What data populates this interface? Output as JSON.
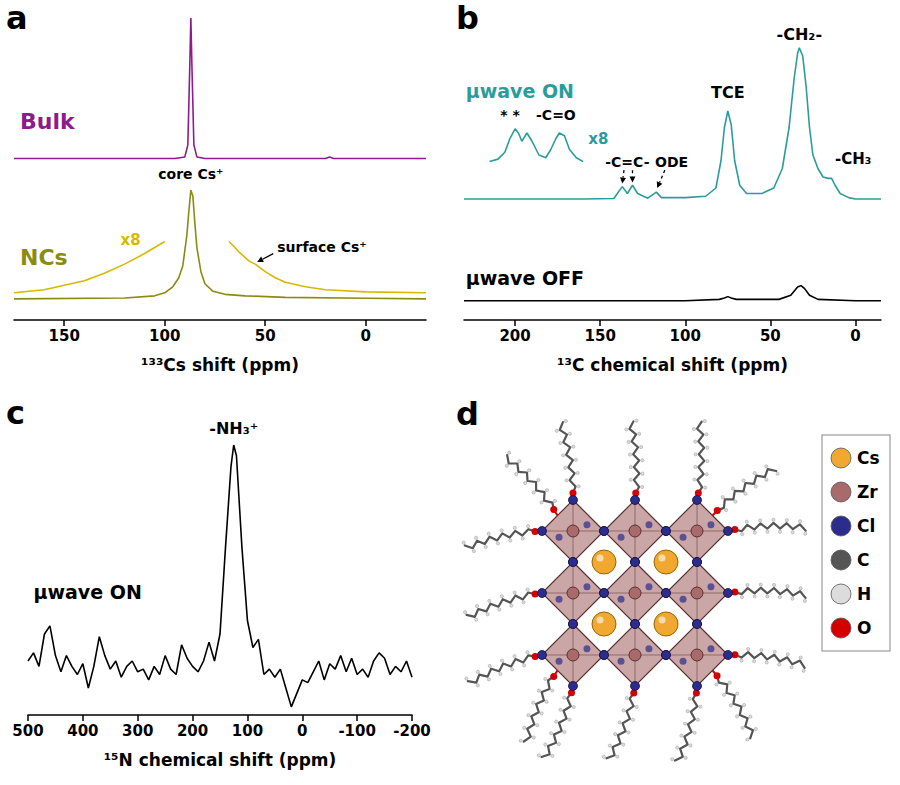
{
  "chart_data": [
    {
      "panel_label": "a",
      "type": "line",
      "x_label": "¹³³Cs shift (ppm)",
      "xlim": [
        175,
        -30
      ],
      "xticks": [
        150,
        100,
        50,
        0
      ],
      "ylim": [
        0,
        100
      ],
      "tick_labels": "x",
      "grid": false,
      "series": [
        {
          "name": "Bulk",
          "color": "#8e1b8c",
          "x": [
            175,
            95,
            90,
            88.5,
            87.5,
            87,
            86.5,
            85.5,
            84,
            80,
            20,
            18,
            16,
            -30
          ],
          "values": [
            53.5,
            53.5,
            54,
            58,
            85,
            100,
            85,
            58,
            54,
            53.5,
            53.5,
            54,
            53.5,
            53.5
          ]
        },
        {
          "name": "NCs",
          "color": "#8b8b12",
          "x": [
            175,
            120,
            105,
            100,
            96,
            93,
            91,
            89,
            88,
            87,
            86,
            85,
            84,
            82,
            80,
            76,
            70,
            60,
            40,
            0,
            -30
          ],
          "values": [
            7,
            7.3,
            8,
            9,
            11,
            14,
            18,
            28,
            36,
            43,
            41,
            32,
            24,
            16,
            12,
            9.5,
            8.5,
            8,
            7.5,
            7.2,
            7
          ]
        },
        {
          "name": "x8",
          "color": "#d8b800",
          "x": [
            175,
            160,
            150,
            140,
            130,
            120,
            110,
            100,
            84,
            68,
            63,
            58,
            55,
            50,
            45,
            40,
            30,
            20,
            0,
            -30
          ],
          "values": [
            9,
            10,
            11.5,
            13,
            15.5,
            18.5,
            22,
            26,
            null,
            26,
            22.5,
            19.5,
            18.5,
            16,
            14,
            12.5,
            11,
            10,
            9.3,
            9
          ]
        }
      ],
      "annotations": [
        "core Cs⁺",
        "surface Cs⁺"
      ]
    },
    {
      "panel_label": "b",
      "type": "line",
      "x_label": "¹³C chemical shift (ppm)",
      "xlim": [
        230,
        -15
      ],
      "xticks": [
        200,
        150,
        100,
        50,
        0
      ],
      "ylim": [
        0,
        100
      ],
      "tick_labels": "x",
      "grid": false,
      "series": [
        {
          "name": "µwave ON",
          "color": "#2a9d9a",
          "x": [
            230,
            160,
            142,
            137,
            134,
            131,
            128,
            122,
            117,
            114,
            100,
            88,
            82,
            79,
            77,
            75,
            73,
            71,
            68,
            64,
            55,
            48,
            43,
            39,
            36,
            34,
            33,
            31,
            29,
            27,
            25,
            22,
            19,
            16,
            14,
            12,
            9,
            4,
            0,
            -15
          ],
          "values": [
            44,
            44,
            44.2,
            48.5,
            46,
            49,
            46,
            44.3,
            46.5,
            44.5,
            44.5,
            45,
            48,
            58,
            70,
            76,
            71,
            58,
            49,
            46,
            46,
            48,
            55,
            70,
            88,
            97,
            99,
            96,
            85,
            70,
            60,
            55,
            52,
            51.5,
            51.5,
            49,
            46,
            44.5,
            44,
            44
          ]
        },
        {
          "name": "µwave OFF",
          "color": "#000000",
          "x": [
            230,
            100,
            80,
            77,
            75,
            73,
            70,
            45,
            38,
            34,
            32,
            30,
            27,
            22,
            0,
            -15
          ],
          "values": [
            7,
            7,
            7.5,
            8,
            8.5,
            8,
            7.5,
            7.5,
            9,
            12,
            12.5,
            11.5,
            9,
            7.5,
            7,
            7
          ]
        },
        {
          "name": "x8",
          "color": "#2a9d9a",
          "x": [
            215,
            210,
            206,
            203,
            200,
            198,
            196,
            193,
            190,
            186,
            182,
            179,
            176,
            174,
            171,
            168,
            164,
            160
          ],
          "values": [
            57.6,
            58.5,
            61,
            66,
            69.5,
            68,
            65,
            68,
            65,
            60,
            59,
            62,
            66,
            68,
            67,
            62,
            59,
            57.6
          ]
        }
      ],
      "annotations": [
        "* *",
        "-C=O",
        "-C=C-",
        "ODE",
        "TCE",
        "-CH₂-",
        "-CH₃"
      ]
    },
    {
      "panel_label": "c",
      "type": "line",
      "x_label": "¹⁵N chemical shift (ppm)",
      "xlim": [
        500,
        -200
      ],
      "xticks": [
        500,
        400,
        300,
        200,
        100,
        0,
        -100,
        -200
      ],
      "ylim": [
        0,
        100
      ],
      "tick_labels": "x",
      "grid": false,
      "series": [
        {
          "name": "µwave ON",
          "color": "#000000",
          "x": [
            500,
            490,
            480,
            470,
            460,
            450,
            440,
            430,
            420,
            410,
            400,
            390,
            380,
            370,
            360,
            350,
            340,
            330,
            320,
            310,
            300,
            290,
            280,
            270,
            260,
            250,
            240,
            230,
            220,
            210,
            200,
            190,
            180,
            170,
            160,
            150,
            140,
            130,
            125,
            120,
            110,
            100,
            90,
            80,
            70,
            60,
            50,
            40,
            30,
            20,
            10,
            0,
            -10,
            -20,
            -30,
            -40,
            -50,
            -60,
            -70,
            -80,
            -90,
            -100,
            -110,
            -120,
            -130,
            -140,
            -150,
            -160,
            -170,
            -180,
            -190,
            -200
          ],
          "values": [
            20,
            23,
            18,
            30,
            33,
            22,
            16,
            22,
            18,
            15,
            19,
            10,
            18,
            29,
            22,
            17,
            20,
            14,
            18,
            20,
            16,
            17,
            13,
            18,
            15,
            22,
            17,
            15,
            26,
            21,
            18,
            16,
            20,
            27,
            20,
            30,
            62,
            92,
            100,
            96,
            62,
            35,
            25,
            28,
            15,
            17,
            14,
            17,
            10,
            3,
            8,
            13,
            12,
            16,
            20,
            13,
            19,
            17,
            22,
            16,
            21,
            15,
            17,
            14,
            20,
            23,
            21,
            15,
            18,
            16,
            20,
            14
          ]
        }
      ],
      "annotations": [
        "-NH₃⁺"
      ]
    }
  ],
  "diagram": {
    "panel_label": "d",
    "legend": [
      {
        "label": "Cs",
        "color": "#f0a830"
      },
      {
        "label": "Zr",
        "color": "#a86a6a"
      },
      {
        "label": "Cl",
        "color": "#2c2c8c"
      },
      {
        "label": "C",
        "color": "#555555"
      },
      {
        "label": "H",
        "color": "#dcdcdc"
      },
      {
        "label": "O",
        "color": "#d40000"
      }
    ]
  }
}
